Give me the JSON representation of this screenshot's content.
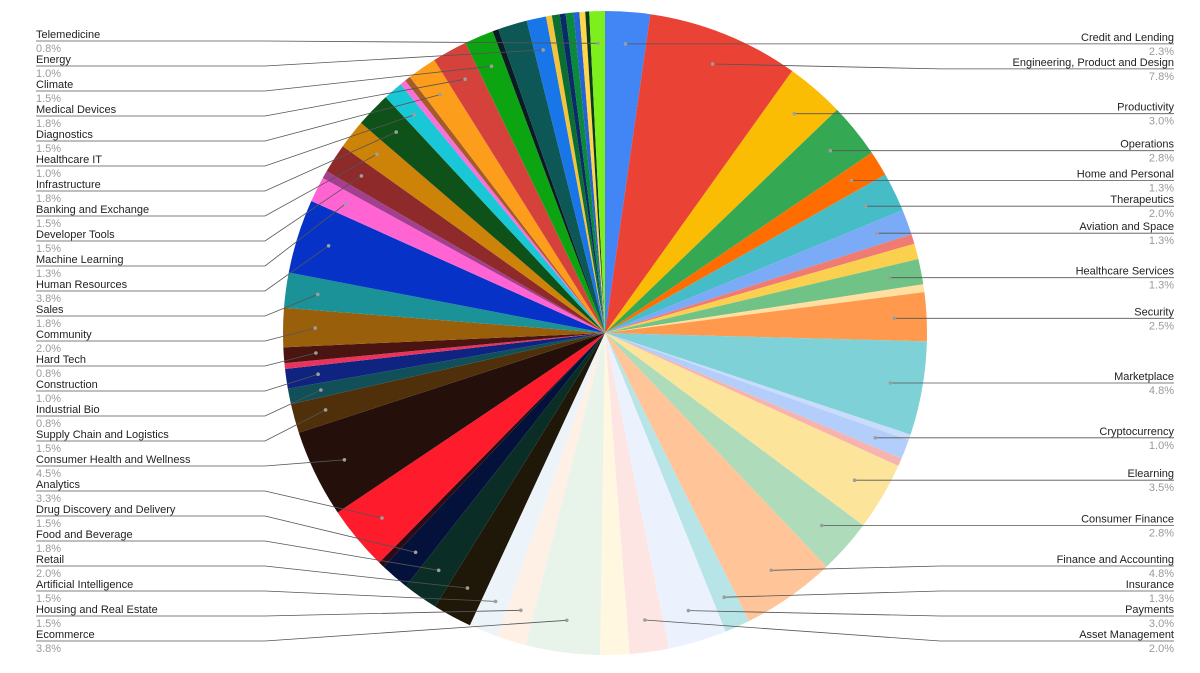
{
  "chart_data": {
    "type": "pie",
    "title": "",
    "unit": "%",
    "slices": [
      {
        "label": "Credit and Lending",
        "value": 2.3,
        "display": "2.3%",
        "color": "#4285f4",
        "side": "right"
      },
      {
        "label": "Engineering, Product and Design",
        "value": 7.8,
        "display": "7.8%",
        "color": "#ea4335",
        "side": "right"
      },
      {
        "label": "Productivity",
        "value": 3.0,
        "display": "3.0%",
        "color": "#fbbc04",
        "side": "right"
      },
      {
        "label": "Operations",
        "value": 2.8,
        "display": "2.8%",
        "color": "#34a853",
        "side": "right"
      },
      {
        "label": "Home and Personal",
        "value": 1.3,
        "display": "1.3%",
        "color": "#ff6d01",
        "side": "right"
      },
      {
        "label": "Therapeutics",
        "value": 2.0,
        "display": "2.0%",
        "color": "#46bdc6",
        "side": "right"
      },
      {
        "label": "Aviation and Space",
        "value": 1.3,
        "display": "1.3%",
        "color": "#7baaf7",
        "side": "right"
      },
      {
        "label": "",
        "value": 0.5,
        "display": "",
        "color": "#f07b72",
        "side": "none"
      },
      {
        "label": "",
        "value": 0.8,
        "display": "",
        "color": "#fcd04f",
        "side": "none"
      },
      {
        "label": "Healthcare Services",
        "value": 1.3,
        "display": "1.3%",
        "color": "#71c287",
        "side": "right"
      },
      {
        "label": "",
        "value": 0.4,
        "display": "",
        "color": "#ffe0a0",
        "side": "none"
      },
      {
        "label": "Security",
        "value": 2.5,
        "display": "2.5%",
        "color": "#ff994d",
        "side": "right"
      },
      {
        "label": "Marketplace",
        "value": 4.8,
        "display": "4.8%",
        "color": "#7ed1d7",
        "side": "right"
      },
      {
        "label": "",
        "value": 0.3,
        "display": "",
        "color": "#c9dcfb",
        "side": "none"
      },
      {
        "label": "Cryptocurrency",
        "value": 1.0,
        "display": "1.0%",
        "color": "#b3cefb",
        "side": "right"
      },
      {
        "label": "",
        "value": 0.4,
        "display": "",
        "color": "#f7b4ae",
        "side": "none"
      },
      {
        "label": "Elearning",
        "value": 3.5,
        "display": "3.5%",
        "color": "#fde49b",
        "side": "right"
      },
      {
        "label": "Consumer Finance",
        "value": 2.8,
        "display": "2.8%",
        "color": "#aedcba",
        "side": "right"
      },
      {
        "label": "Finance and Accounting",
        "value": 4.8,
        "display": "4.8%",
        "color": "#ffc599",
        "side": "right"
      },
      {
        "label": "Insurance",
        "value": 1.3,
        "display": "1.3%",
        "color": "#b6e4e7",
        "side": "right"
      },
      {
        "label": "Payments",
        "value": 3.0,
        "display": "3.0%",
        "color": "#ecf2fd",
        "side": "right"
      },
      {
        "label": "Asset Management",
        "value": 2.0,
        "display": "2.0%",
        "color": "#fde5e3",
        "side": "right"
      },
      {
        "label": "",
        "value": 1.5,
        "display": "",
        "color": "#fff7e0",
        "side": "none"
      },
      {
        "label": "Ecommerce",
        "value": 3.8,
        "display": "3.8%",
        "color": "#e8f4ea",
        "side": "left"
      },
      {
        "label": "Housing and Real Estate",
        "value": 1.5,
        "display": "1.5%",
        "color": "#fff0e6",
        "side": "left"
      },
      {
        "label": "Artificial Intelligence",
        "value": 1.5,
        "display": "1.5%",
        "color": "#ecf4fa",
        "side": "left"
      },
      {
        "label": "Retail",
        "value": 2.0,
        "display": "2.0%",
        "color": "#1f1708",
        "side": "left"
      },
      {
        "label": "Food and Beverage",
        "value": 1.8,
        "display": "1.8%",
        "color": "#0a2e26",
        "side": "left"
      },
      {
        "label": "Drug Discovery and Delivery",
        "value": 1.5,
        "display": "1.5%",
        "color": "#03113b",
        "side": "left"
      },
      {
        "label": "",
        "value": 0.3,
        "display": "",
        "color": "#2d0b14",
        "side": "none"
      },
      {
        "label": "Analytics",
        "value": 3.3,
        "display": "3.3%",
        "color": "#fe1b2c",
        "side": "left"
      },
      {
        "label": "Consumer Health and Wellness",
        "value": 4.5,
        "display": "4.5%",
        "color": "#240f0b",
        "side": "left"
      },
      {
        "label": "Supply Chain and Logistics",
        "value": 1.5,
        "display": "1.5%",
        "color": "#4f300a",
        "side": "left"
      },
      {
        "label": "Industrial Bio",
        "value": 0.8,
        "display": "0.8%",
        "color": "#114f59",
        "side": "left"
      },
      {
        "label": "Construction",
        "value": 1.0,
        "display": "1.0%",
        "color": "#0f2380",
        "side": "left"
      },
      {
        "label": "",
        "value": 0.3,
        "display": "",
        "color": "#e8345c",
        "side": "none"
      },
      {
        "label": "Hard Tech",
        "value": 0.8,
        "display": "0.8%",
        "color": "#4a1410",
        "side": "left"
      },
      {
        "label": "Community",
        "value": 2.0,
        "display": "2.0%",
        "color": "#9a5f0b",
        "side": "left"
      },
      {
        "label": "Sales",
        "value": 1.8,
        "display": "1.8%",
        "color": "#1b9298",
        "side": "left"
      },
      {
        "label": "Human Resources",
        "value": 3.8,
        "display": "3.8%",
        "color": "#0632c8",
        "side": "left"
      },
      {
        "label": "Machine Learning",
        "value": 1.3,
        "display": "1.3%",
        "color": "#ff64d2",
        "side": "left"
      },
      {
        "label": "",
        "value": 0.4,
        "display": "",
        "color": "#a33f8f",
        "side": "none"
      },
      {
        "label": "Developer Tools",
        "value": 1.5,
        "display": "1.5%",
        "color": "#8e2a2a",
        "side": "left"
      },
      {
        "label": "Banking and Exchange",
        "value": 1.5,
        "display": "1.5%",
        "color": "#cc8308",
        "side": "left"
      },
      {
        "label": "Infrastructure",
        "value": 1.8,
        "display": "1.8%",
        "color": "#0e5119",
        "side": "left"
      },
      {
        "label": "Healthcare IT",
        "value": 1.0,
        "display": "1.0%",
        "color": "#19c7d6",
        "side": "left"
      },
      {
        "label": "",
        "value": 0.3,
        "display": "",
        "color": "#fb6fd9",
        "side": "none"
      },
      {
        "label": "",
        "value": 0.3,
        "display": "",
        "color": "#a65b2a",
        "side": "none"
      },
      {
        "label": "Diagnostics",
        "value": 1.5,
        "display": "1.5%",
        "color": "#fd9d1c",
        "side": "left"
      },
      {
        "label": "Medical Devices",
        "value": 1.8,
        "display": "1.8%",
        "color": "#d5423c",
        "side": "left"
      },
      {
        "label": "Climate",
        "value": 1.5,
        "display": "1.5%",
        "color": "#0da411",
        "side": "left"
      },
      {
        "label": "",
        "value": 0.3,
        "display": "",
        "color": "#0b1a23",
        "side": "none"
      },
      {
        "label": "",
        "value": 1.5,
        "display": "",
        "color": "#0e5757",
        "side": "none"
      },
      {
        "label": "Energy",
        "value": 1.0,
        "display": "1.0%",
        "color": "#1976e8",
        "side": "left"
      },
      {
        "label": "",
        "value": 0.3,
        "display": "",
        "color": "#f6c43a",
        "side": "none"
      },
      {
        "label": "",
        "value": 0.4,
        "display": "",
        "color": "#0b6e32",
        "side": "none"
      },
      {
        "label": "",
        "value": 0.3,
        "display": "",
        "color": "#0a2a6a",
        "side": "none"
      },
      {
        "label": "",
        "value": 0.4,
        "display": "",
        "color": "#0a8a3a",
        "side": "none"
      },
      {
        "label": "",
        "value": 0.3,
        "display": "",
        "color": "#2463d6",
        "side": "none"
      },
      {
        "label": "",
        "value": 0.3,
        "display": "",
        "color": "#ffd54a",
        "side": "none"
      },
      {
        "label": "",
        "value": 0.2,
        "display": "",
        "color": "#0b3b1f",
        "side": "none"
      },
      {
        "label": "Telemedicine",
        "value": 0.8,
        "display": "0.8%",
        "color": "#7cef1c",
        "side": "left"
      }
    ]
  }
}
